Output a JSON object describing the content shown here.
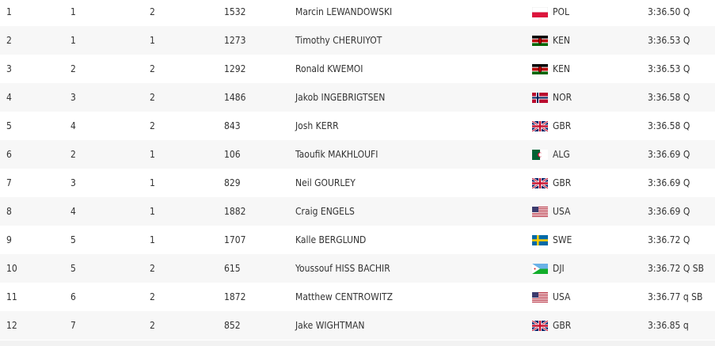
{
  "table": {
    "rows": [
      [
        "1",
        "1",
        "2",
        "1532",
        "Marcin LEWANDOWSKI",
        "POL",
        "3:36.50 Q"
      ],
      [
        "2",
        "1",
        "1",
        "1273",
        "Timothy CHERUIYOT",
        "KEN",
        "3:36.53 Q"
      ],
      [
        "3",
        "2",
        "2",
        "1292",
        "Ronald KWEMOI",
        "KEN",
        "3:36.53 Q"
      ],
      [
        "4",
        "3",
        "2",
        "1486",
        "Jakob INGEBRIGTSEN",
        "NOR",
        "3:36.58 Q"
      ],
      [
        "5",
        "4",
        "2",
        "843",
        "Josh KERR",
        "GBR",
        "3:36.58 Q"
      ],
      [
        "6",
        "2",
        "1",
        "106",
        "Taoufik MAKHLOUFI",
        "ALG",
        "3:36.69 Q"
      ],
      [
        "7",
        "3",
        "1",
        "829",
        "Neil GOURLEY",
        "GBR",
        "3:36.69 Q"
      ],
      [
        "8",
        "4",
        "1",
        "1882",
        "Craig ENGELS",
        "USA",
        "3:36.69 Q"
      ],
      [
        "9",
        "5",
        "1",
        "1707",
        "Kalle BERGLUND",
        "SWE",
        "3:36.72 Q"
      ],
      [
        "10",
        "5",
        "2",
        "615",
        "Youssouf HISS BACHIR",
        "DJI",
        "3:36.72 Q SB"
      ],
      [
        "11",
        "6",
        "2",
        "1872",
        "Matthew CENTROWITZ",
        "USA",
        "3:36.77 q SB"
      ],
      [
        "12",
        "7",
        "2",
        "852",
        "Jake WIGHTMAN",
        "GBR",
        "3:36.85 q"
      ]
    ]
  }
}
